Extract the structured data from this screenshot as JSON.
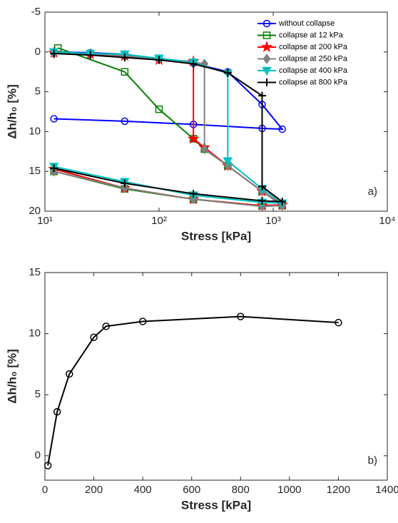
{
  "chart_data": [
    {
      "type": "line",
      "xlabel": "Stress [kPa]",
      "ylabel": "Δh/h₀ [%]",
      "annotation": "a)",
      "xscale": "log",
      "xlim": [
        10,
        10000
      ],
      "xticks": [
        {
          "value": 10,
          "label": "10¹"
        },
        {
          "value": 100,
          "label": "10²"
        },
        {
          "value": 1000,
          "label": "10³"
        },
        {
          "value": 10000,
          "label": "10⁴"
        }
      ],
      "ylim": [
        -5,
        20
      ],
      "y_reversed": true,
      "yticks": [
        -5,
        0,
        5,
        10,
        15,
        20
      ],
      "legend": "upper right",
      "series": [
        {
          "name": "without collapse",
          "color": "#0000ff",
          "marker": "circle",
          "x": [
            12,
            25,
            50,
            100,
            200,
            400,
            800,
            1200,
            800,
            200,
            50,
            12
          ],
          "values": [
            0,
            0.1,
            0.3,
            0.9,
            1.4,
            2.5,
            6.6,
            9.7,
            9.6,
            9.1,
            8.7,
            8.4
          ]
        },
        {
          "name": "collapse at 12 kPa",
          "color": "#008000",
          "marker": "square",
          "x": [
            13,
            50,
            100,
            200,
            250,
            400,
            800,
            1200,
            800,
            200,
            50,
            12
          ],
          "values": [
            -0.5,
            2.5,
            7.2,
            10.9,
            12.2,
            14.3,
            17.5,
            19.3,
            19.3,
            18.5,
            17.2,
            15
          ]
        },
        {
          "name": "collapse at 200 kPa",
          "color": "#ff0000",
          "marker": "star",
          "x": [
            12,
            25,
            50,
            100,
            200,
            200,
            250,
            400,
            800,
            1200,
            800,
            200,
            50,
            12
          ],
          "values": [
            0.1,
            0.3,
            0.5,
            1,
            1.2,
            10.9,
            12,
            14.3,
            17.5,
            19.2,
            19.3,
            18.5,
            17.1,
            14.7
          ]
        },
        {
          "name": "collapse at 250 kPa",
          "color": "#808080",
          "marker": "diamond",
          "x": [
            12,
            25,
            50,
            100,
            200,
            250,
            250,
            400,
            800,
            1200,
            800,
            200,
            50,
            12
          ],
          "values": [
            0.2,
            0.2,
            0.5,
            0.9,
            1.3,
            1.5,
            12.2,
            14.3,
            17.5,
            19.3,
            19.4,
            18.5,
            17.1,
            15
          ]
        },
        {
          "name": "collapse at 400 kPa",
          "color": "#00c0c0",
          "marker": "triangle",
          "x": [
            12,
            25,
            50,
            100,
            200,
            400,
            400,
            800,
            1200,
            800,
            200,
            50,
            12
          ],
          "values": [
            0,
            0.2,
            0.3,
            0.8,
            1.3,
            2.7,
            13.7,
            17.2,
            19,
            18.9,
            18,
            16.3,
            14.4
          ]
        },
        {
          "name": "collapse at 800 kPa",
          "color": "#000000",
          "marker": "plus",
          "x": [
            12,
            25,
            50,
            100,
            200,
            400,
            800,
            800,
            1200,
            800,
            200,
            50,
            12
          ],
          "values": [
            0.2,
            0.4,
            0.7,
            1,
            1.5,
            2.6,
            5.5,
            16.9,
            18.8,
            18.7,
            17.8,
            16.5,
            14.6
          ]
        }
      ]
    },
    {
      "type": "line",
      "xlabel": "Stress [kPa]",
      "ylabel": "Δh/h₀ [%]",
      "annotation": "b)",
      "xscale": "linear",
      "xlim": [
        0,
        1400
      ],
      "xticks": [
        0,
        200,
        400,
        600,
        800,
        1000,
        1200,
        1400
      ],
      "ylim": [
        -2,
        15
      ],
      "yticks": [
        0,
        5,
        10,
        15
      ],
      "series": [
        {
          "color": "#000000",
          "marker": "circle",
          "x": [
            12,
            50,
            100,
            200,
            250,
            400,
            800,
            1200
          ],
          "values": [
            -0.8,
            3.6,
            6.7,
            9.7,
            10.6,
            11,
            11.4,
            10.9
          ]
        }
      ]
    }
  ]
}
